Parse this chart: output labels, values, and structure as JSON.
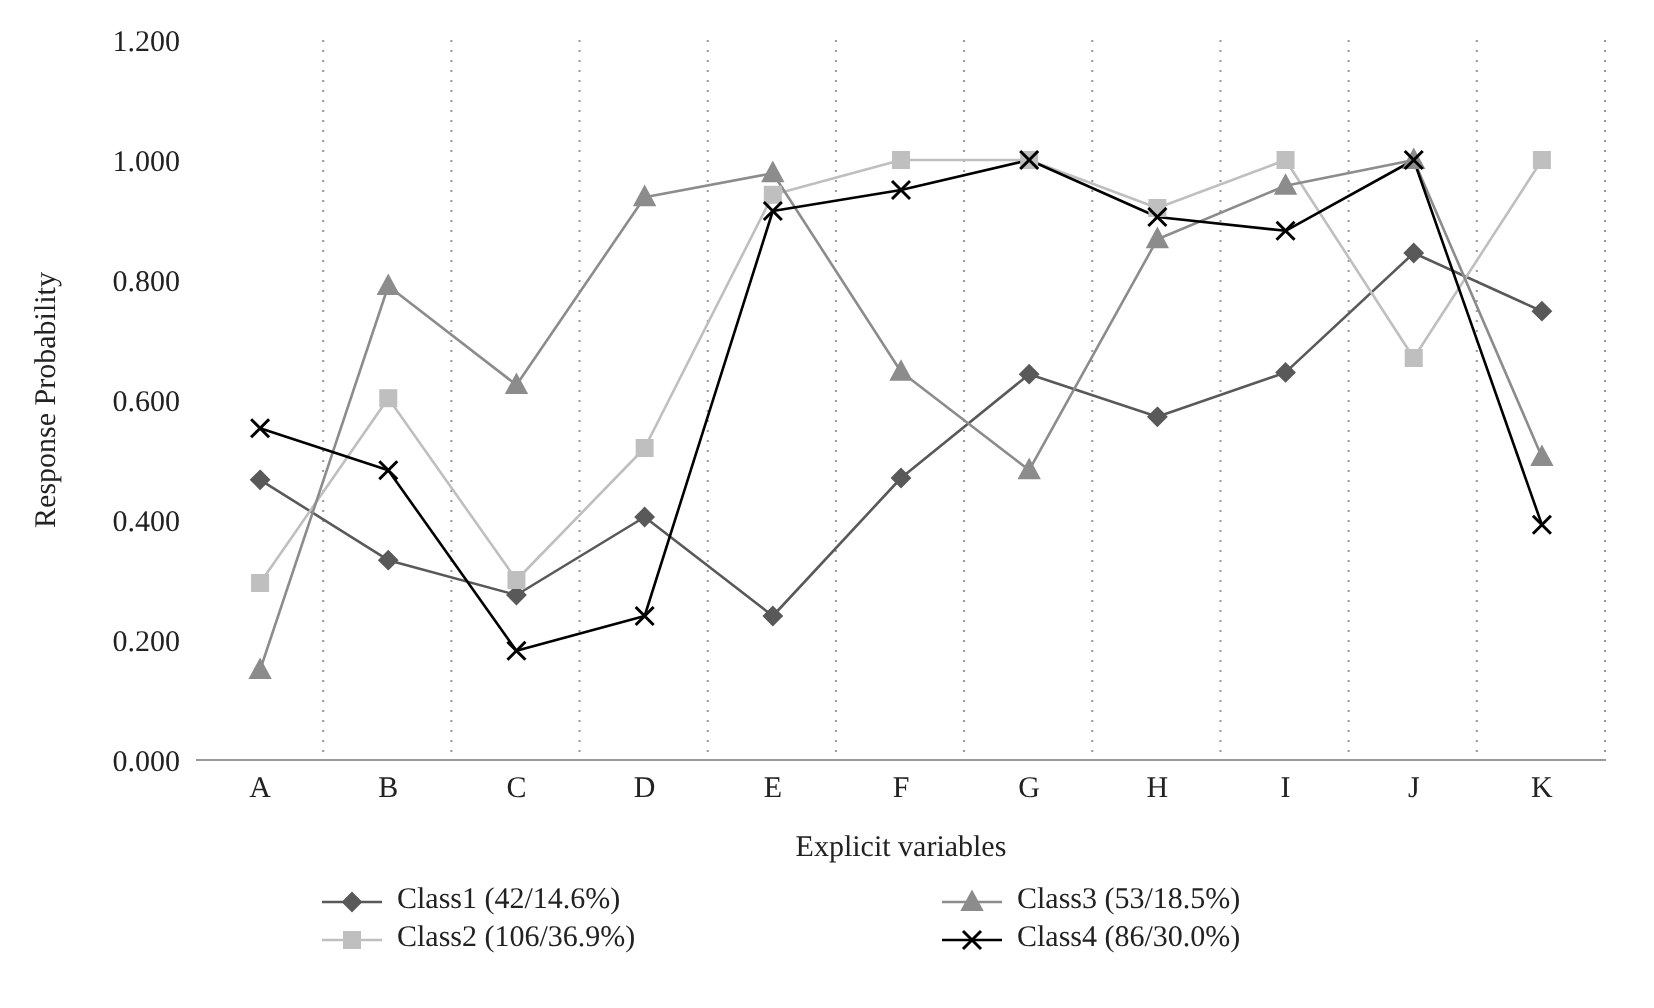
{
  "chart_data": {
    "type": "line",
    "xlabel": "Explicit variables",
    "ylabel": "Response Probability",
    "categories": [
      "A",
      "B",
      "C",
      "D",
      "E",
      "F",
      "G",
      "H",
      "I",
      "J",
      "K"
    ],
    "series": [
      {
        "name": "Class1 (42/14.6%)",
        "color": "#595959",
        "marker": "diamond",
        "values": [
          0.467,
          0.333,
          0.275,
          0.405,
          0.24,
          0.47,
          0.643,
          0.572,
          0.646,
          0.845,
          0.748
        ]
      },
      {
        "name": "Class2 (106/36.9%)",
        "color": "#bfbfbf",
        "marker": "square",
        "values": [
          0.295,
          0.603,
          0.3,
          0.52,
          0.942,
          1.0,
          1.0,
          0.92,
          1.0,
          0.67,
          1.0
        ]
      },
      {
        "name": "Class3 (53/18.5%)",
        "color": "#8c8c8c",
        "marker": "triangle",
        "values": [
          0.15,
          0.79,
          0.625,
          0.938,
          0.978,
          0.647,
          0.483,
          0.868,
          0.957,
          1.0,
          0.505
        ]
      },
      {
        "name": "Class4 (86/30.0%)",
        "color": "#000000",
        "marker": "cross",
        "values": [
          0.553,
          0.483,
          0.182,
          0.24,
          0.915,
          0.95,
          1.0,
          0.905,
          0.882,
          1.0,
          0.392
        ]
      }
    ],
    "ylim": [
      0,
      1.2
    ],
    "yticks": [
      {
        "value": 0,
        "label": "0.000"
      },
      {
        "value": 0.2,
        "label": "0.200"
      },
      {
        "value": 0.4,
        "label": "0.400"
      },
      {
        "value": 0.6,
        "label": "0.600"
      },
      {
        "value": 0.8,
        "label": "0.800"
      },
      {
        "value": 1,
        "label": "1.000"
      },
      {
        "value": 1.2,
        "label": "1.200"
      }
    ],
    "grid": "x",
    "legend": "bottom",
    "line_style": "solid"
  }
}
